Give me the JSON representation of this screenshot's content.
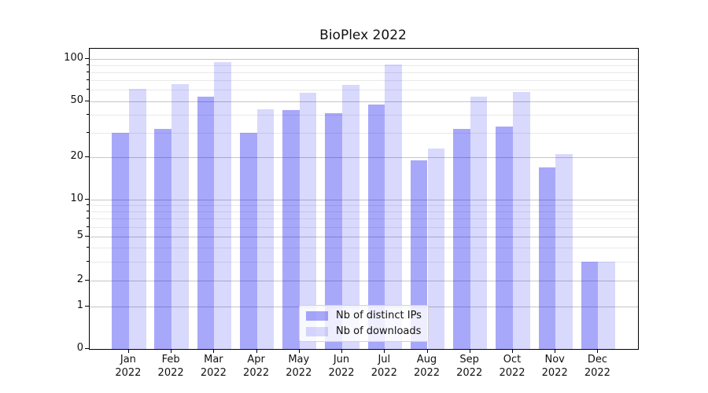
{
  "figure": {
    "title": "BioPlex 2022"
  },
  "chart_data": {
    "type": "bar",
    "title": "BioPlex 2022",
    "x_month_labels": [
      "Jan",
      "Feb",
      "Mar",
      "Apr",
      "May",
      "Jun",
      "Jul",
      "Aug",
      "Sep",
      "Oct",
      "Nov",
      "Dec"
    ],
    "x_year": "2022",
    "series": [
      {
        "name": "Nb of distinct IPs",
        "color": "rgba(0,0,240,0.34)",
        "values": [
          30,
          32,
          54,
          30,
          43,
          41,
          47,
          19,
          32,
          33,
          17,
          3
        ]
      },
      {
        "name": "Nb of downloads",
        "color": "rgba(0,0,240,0.15)",
        "values": [
          61,
          66,
          94,
          44,
          57,
          65,
          91,
          23,
          54,
          58,
          21,
          3
        ]
      }
    ],
    "y_axis": {
      "scale": "symlog-like",
      "tick_labels": [
        "100",
        "50",
        "20",
        "10",
        "5",
        "2",
        "1",
        "0"
      ],
      "tick_values": [
        100,
        50,
        20,
        10,
        5,
        2,
        1,
        0
      ],
      "anchors": [
        {
          "v": 1,
          "f": 0.8583
        },
        {
          "v": 2,
          "f": 0.7731
        },
        {
          "v": 5,
          "f": 0.6267
        },
        {
          "v": 10,
          "f": 0.5012
        },
        {
          "v": 20,
          "f": 0.3616
        },
        {
          "v": 50,
          "f": 0.1744
        },
        {
          "v": 100,
          "f": 0.0327
        }
      ],
      "minor_values": [
        3,
        4,
        6,
        7,
        8,
        9,
        30,
        40,
        60,
        70,
        80,
        90
      ]
    },
    "grid": true,
    "legend": {
      "position": "lower-center",
      "entries": [
        "Nb of distinct IPs",
        "Nb of downloads"
      ]
    }
  },
  "colors": {
    "grid_major": "#c6c6c6",
    "grid_minor": "#e9e9e9",
    "spine": "#000000",
    "text": "#111111"
  }
}
